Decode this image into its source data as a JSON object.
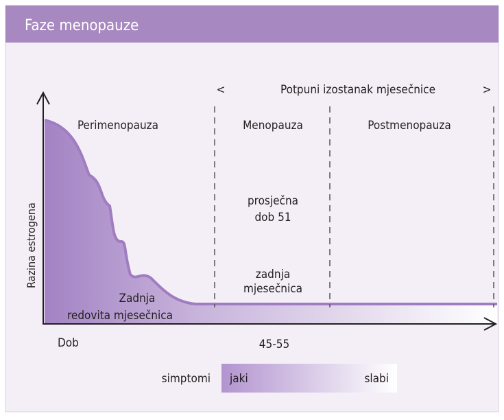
{
  "header": {
    "title": "Faze menopauze"
  },
  "span": {
    "left": "<",
    "label": "Potpuni izostanak mjesečnice",
    "right": ">"
  },
  "phases": [
    "Perimenopauza",
    "Menopauza",
    "Postmenopauza"
  ],
  "notes": {
    "average_age": [
      "prosječna",
      "dob 51"
    ],
    "last_period": [
      "zadnja",
      "mjesečnica"
    ],
    "last_regular": [
      "Zadnja",
      "redovita mjesečnica"
    ]
  },
  "axes": {
    "y_label": "Razina estrogena",
    "x_label": "Dob",
    "x_marker": "45-55"
  },
  "symptoms": {
    "label": "simptomi",
    "strong": "jaki",
    "weak": "slabi"
  }
}
